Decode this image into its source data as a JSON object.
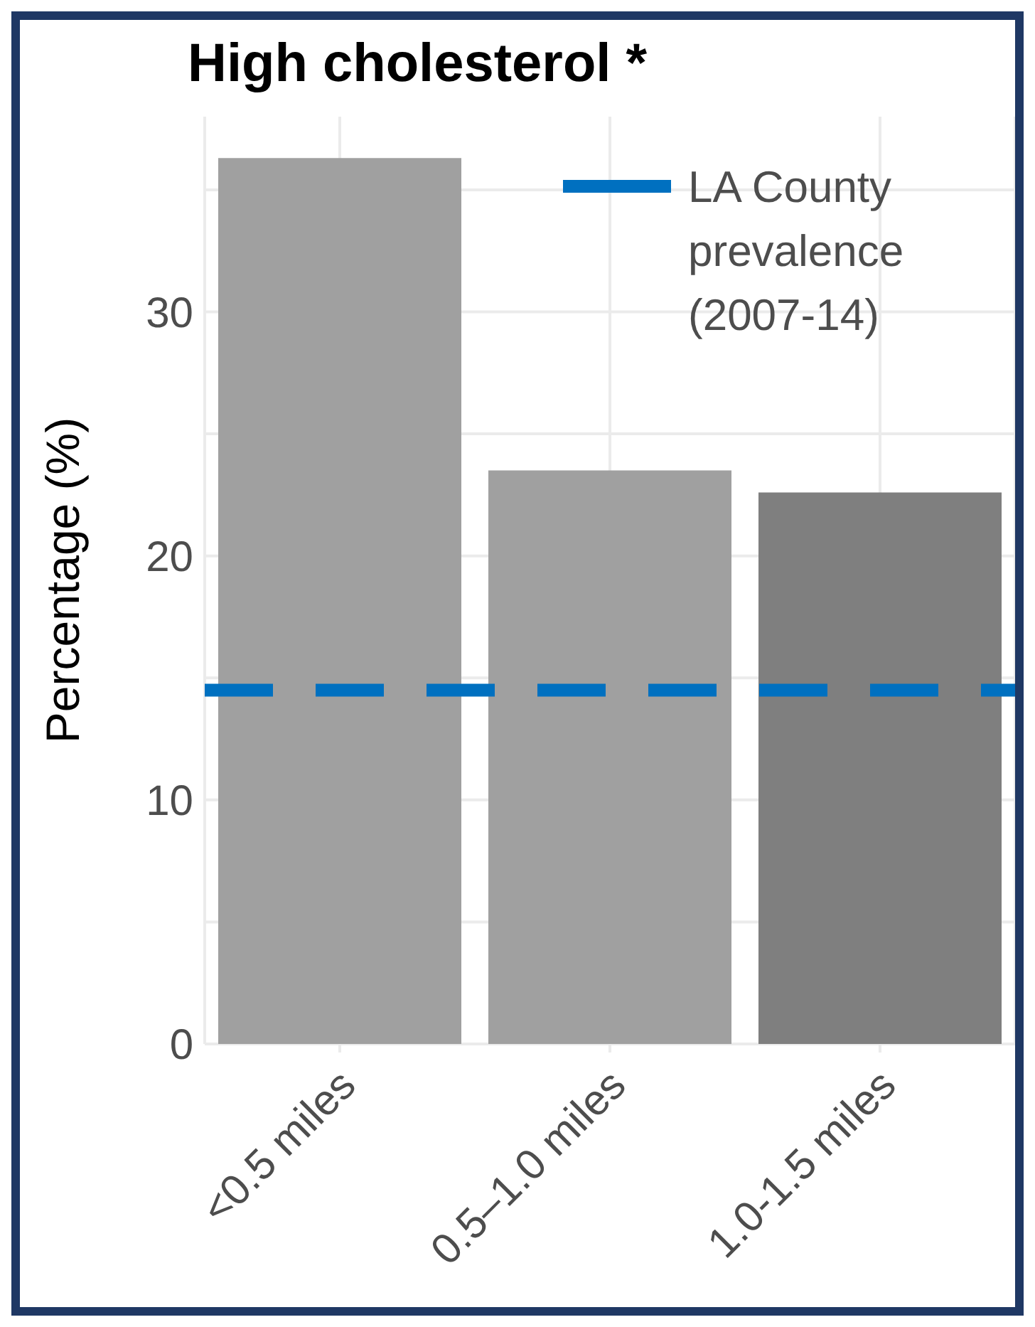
{
  "chart_data": {
    "type": "bar",
    "title": "High cholesterol *",
    "ylabel": "Percentage (%)",
    "categories": [
      "<0.5 miles",
      "0.5–1.0 miles",
      "1.0-1.5 miles"
    ],
    "values": [
      36.3,
      23.5,
      22.6
    ],
    "colors": [
      "#a0a0a0",
      "#a0a0a0",
      "#7f7f7f"
    ],
    "ylim": [
      0,
      38
    ],
    "yticks": [
      0,
      10,
      20,
      30
    ],
    "grid": true,
    "legend": "top right",
    "ref_lines": [
      {
        "axis": "y",
        "value": 14.5,
        "label": "LA County prevalence (2007-14)",
        "color": "#0070c0",
        "line_style": "dashed"
      }
    ]
  }
}
